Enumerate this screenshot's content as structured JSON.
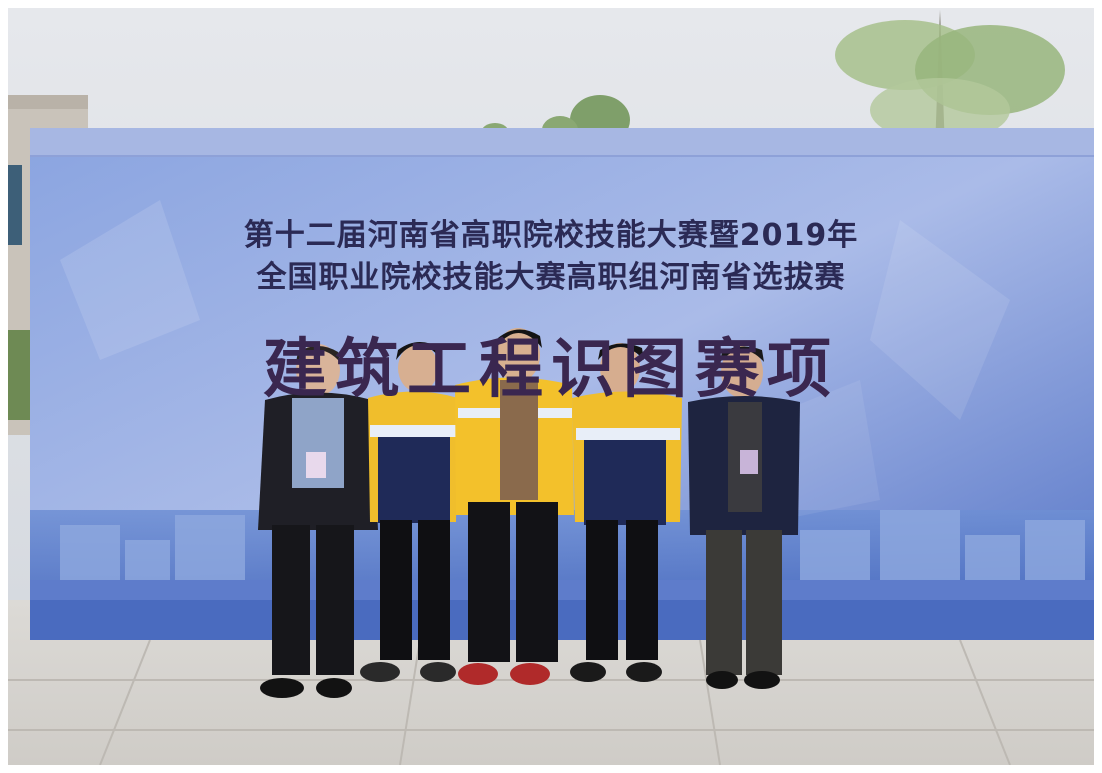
{
  "banner": {
    "line1": "第十二届河南省高职院校技能大赛暨2019年",
    "line2": "全国职业院校技能大赛高职组河南省选拔赛",
    "line3": "建筑工程识图赛项"
  },
  "people_count": 5,
  "colors": {
    "sky": "#dfe3e8",
    "banner_blue": "#5f7fd0",
    "banner_light": "#9db2e6",
    "title_text": "#2b2a55",
    "jacket_yellow": "#f2c12e",
    "jacket_navy": "#1f2a55",
    "pavement": "#d8d6d2"
  }
}
